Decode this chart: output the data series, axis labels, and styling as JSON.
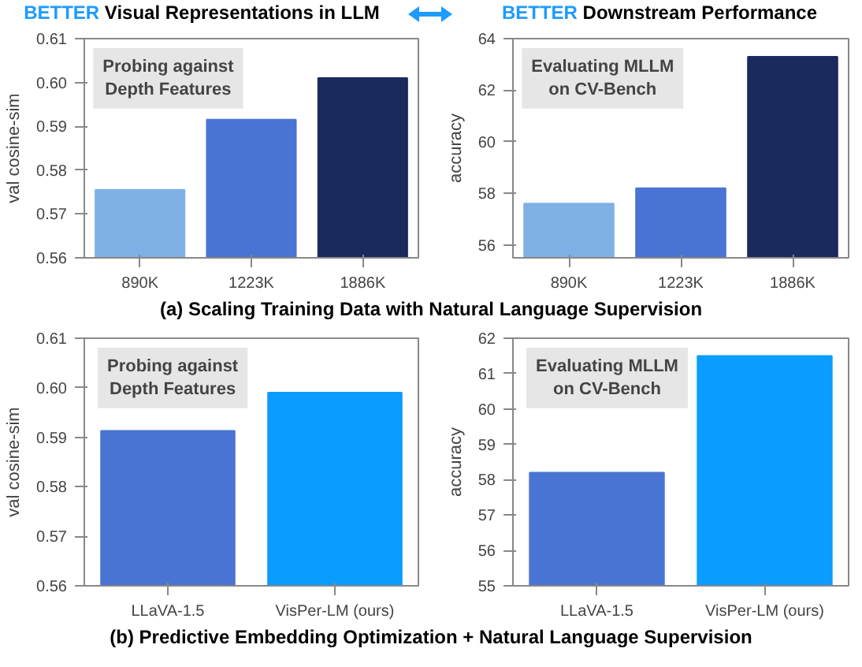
{
  "chart_data": [
    {
      "type": "bar",
      "title": "BETTER Visual Representations in LLM",
      "ylabel": "val cosine-sim",
      "categories": [
        "890K",
        "1223K",
        "1886K"
      ],
      "values": [
        0.5755,
        0.5915,
        0.601
      ],
      "colors": [
        "#7fb1e6",
        "#4a74d3",
        "#1b2a5c"
      ],
      "ylim": [
        0.56,
        0.61
      ],
      "yticks": [
        0.56,
        0.57,
        0.58,
        0.59,
        {
          "value": 0.6,
          "label": "0.60"
        },
        0.61
      ],
      "grid": false,
      "annotations": [
        "Probing against\nDepth Features",
        "(a) Scaling Training Data with Natural Language Supervision"
      ]
    },
    {
      "type": "bar",
      "title": "BETTER Downstream Performance",
      "ylabel": "accuracy",
      "categories": [
        "890K",
        "1223K",
        "1886K"
      ],
      "values": [
        57.6,
        58.2,
        63.3
      ],
      "colors": [
        "#7fb1e6",
        "#4a74d3",
        "#1b2a5c"
      ],
      "ylim": [
        55.5,
        64
      ],
      "yticks": [
        56,
        58,
        60,
        62,
        64
      ],
      "grid": false,
      "annotations": [
        "Evaluating MLLM\non CV-Bench"
      ]
    },
    {
      "type": "bar",
      "ylabel": "val cosine-sim",
      "categories": [
        "LLaVA-1.5",
        "VisPer-LM (ours)"
      ],
      "values": [
        0.5913,
        0.599
      ],
      "colors": [
        "#4a74d3",
        "#0a9cff"
      ],
      "ylim": [
        0.56,
        0.61
      ],
      "yticks": [
        0.56,
        0.57,
        0.58,
        0.59,
        {
          "value": 0.6,
          "label": "0.60"
        },
        0.61
      ],
      "grid": false,
      "annotations": [
        "Probing against\nDepth Features",
        "(b) Predictive Embedding Optimization + Natural Language Supervision"
      ]
    },
    {
      "type": "bar",
      "ylabel": "accuracy",
      "categories": [
        "LLaVA-1.5",
        "VisPer-LM (ours)"
      ],
      "values": [
        58.2,
        61.5
      ],
      "colors": [
        "#4a74d3",
        "#0a9cff"
      ],
      "ylim": [
        55,
        62
      ],
      "yticks": [
        55,
        56,
        57,
        58,
        59,
        60,
        61,
        62
      ],
      "grid": false,
      "annotations": [
        "Evaluating MLLM\non CV-Bench"
      ]
    }
  ]
}
